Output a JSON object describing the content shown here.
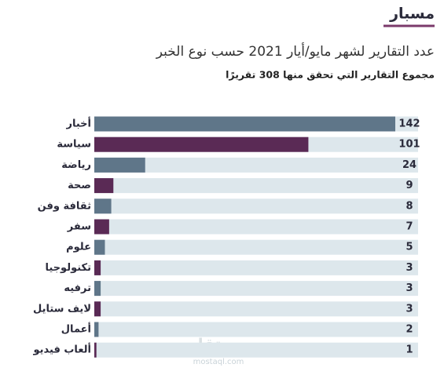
{
  "brand": "مسبار",
  "watermark": {
    "name": "مستقل",
    "url": "mostaql.com"
  },
  "chart_data": {
    "type": "hbar",
    "title": "عدد التقارير لشهر مايو/أيار 2021 حسب نوع الخبر",
    "subtitle": "مجموع التقارير التي تحقق منها 308 تقريرًا",
    "categories": [
      "أخبار",
      "سياسة",
      "رياضة",
      "صحة",
      "ثقافة وفن",
      "سفر",
      "علوم",
      "تكنولوجيا",
      "ترفيه",
      "لايف ستايل",
      "أعمال",
      "ألعاب فيديو"
    ],
    "values": [
      142,
      101,
      24,
      9,
      8,
      7,
      5,
      3,
      3,
      3,
      2,
      1
    ],
    "colors": [
      "#5f7689",
      "#5a2a55",
      "#5f7689",
      "#5a2a55",
      "#5f7689",
      "#5a2a55",
      "#5f7689",
      "#5a2a55",
      "#5f7689",
      "#5a2a55",
      "#5f7689",
      "#5a2a55"
    ],
    "track_color": "#dde7ec"
  }
}
